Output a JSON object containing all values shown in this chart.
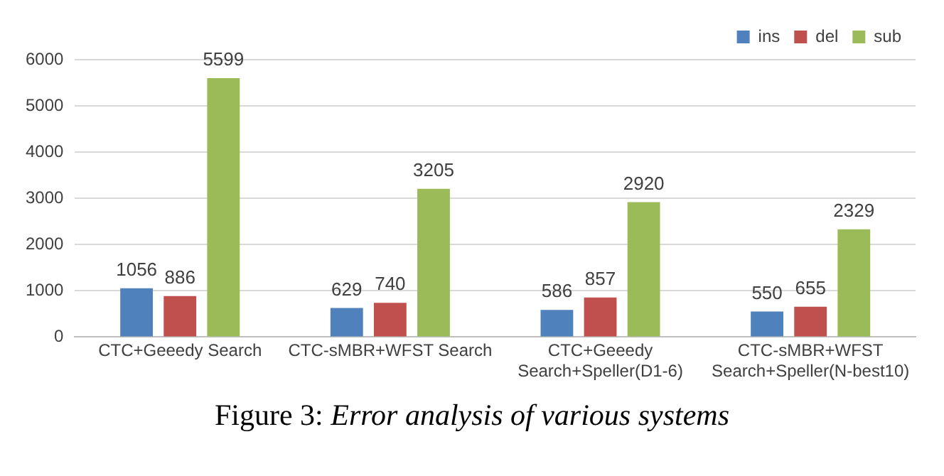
{
  "chart_data": {
    "type": "bar",
    "categories": [
      "CTC+Geeedy Search",
      "CTC-sMBR+WFST Search",
      "CTC+Geeedy\nSearch+Speller(D1-6)",
      "CTC-sMBR+WFST\nSearch+Speller(N-best10)"
    ],
    "series": [
      {
        "name": "ins",
        "color": "#4f81bd",
        "values": [
          1056,
          629,
          586,
          550
        ]
      },
      {
        "name": "del",
        "color": "#c0504d",
        "values": [
          886,
          740,
          857,
          655
        ]
      },
      {
        "name": "sub",
        "color": "#9bbb59",
        "values": [
          5599,
          3205,
          2920,
          2329
        ]
      }
    ],
    "ylim": [
      0,
      6000
    ],
    "yticks": [
      0,
      1000,
      2000,
      3000,
      4000,
      5000,
      6000
    ],
    "grid": "y",
    "legend": "top right",
    "data_labels": true,
    "annotations": [
      "Figure 3: Error analysis of various systems"
    ]
  }
}
